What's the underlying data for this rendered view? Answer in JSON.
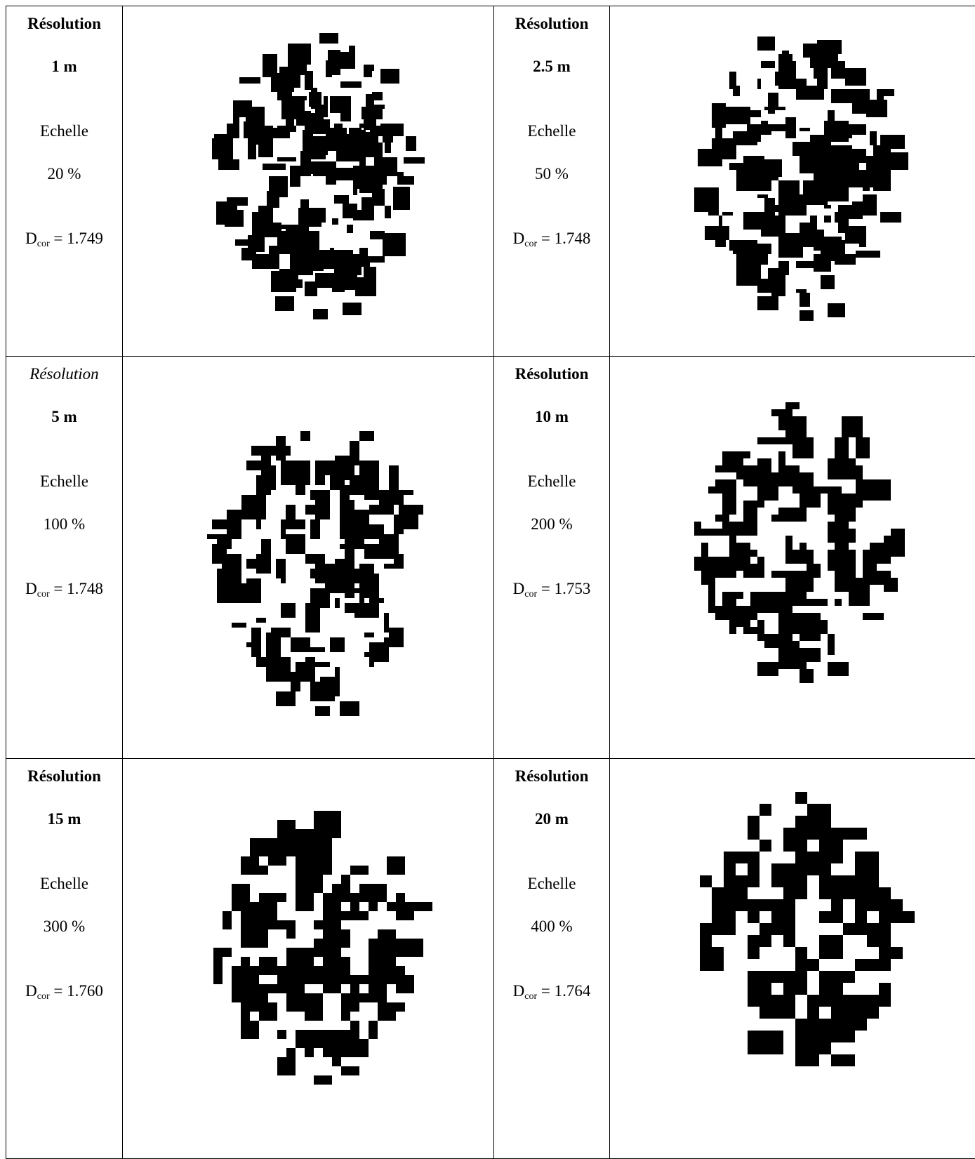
{
  "table": {
    "rows": [
      [
        {
          "resolution_label": "Résolution",
          "resolution": "1 m",
          "scale_label": "Echelle",
          "scale": "20 %",
          "dcor_symbol": "D",
          "dcor_subscript": "cor",
          "dcor_value": "= 1.749"
        },
        {
          "resolution_label": "Résolution",
          "resolution": "2.5 m",
          "scale_label": "Echelle",
          "scale": "50 %",
          "dcor_symbol": "D",
          "dcor_subscript": "cor",
          "dcor_value": "= 1.748"
        }
      ],
      [
        {
          "resolution_label": "Résolution",
          "resolution": "5 m",
          "scale_label": "Echelle",
          "scale": "100 %",
          "dcor_symbol": "D",
          "dcor_subscript": "cor",
          "dcor_value": "= 1.748"
        },
        {
          "resolution_label": "Résolution",
          "resolution": "10 m",
          "scale_label": "Echelle",
          "scale": "200 %",
          "dcor_symbol": "D",
          "dcor_subscript": "cor",
          "dcor_value": "= 1.753"
        }
      ],
      [
        {
          "resolution_label": "Résolution",
          "resolution": "15 m",
          "scale_label": "Echelle",
          "scale": "300 %",
          "dcor_symbol": "D",
          "dcor_subscript": "cor",
          "dcor_value": "= 1.760"
        },
        {
          "resolution_label": "Résolution",
          "resolution": "20 m",
          "scale_label": "Echelle",
          "scale": "400 %",
          "dcor_symbol": "D",
          "dcor_subscript": "cor",
          "dcor_value": "= 1.764"
        }
      ]
    ]
  }
}
